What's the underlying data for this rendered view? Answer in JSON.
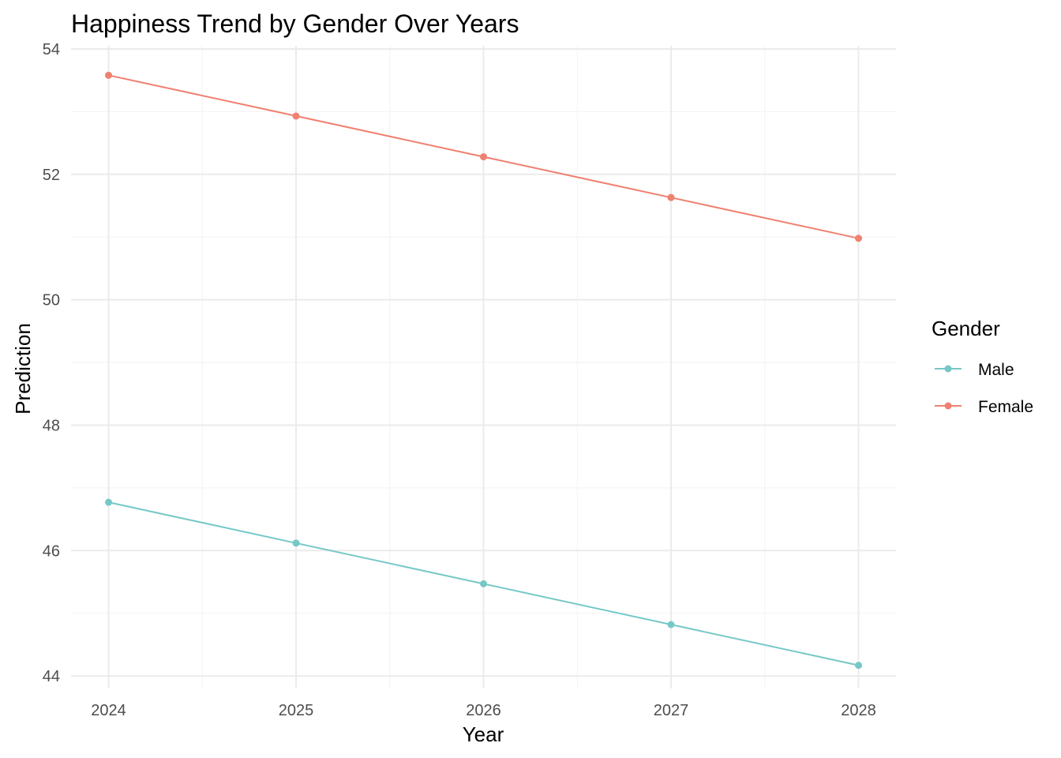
{
  "chart_data": {
    "type": "line",
    "title": "Happiness Trend by Gender Over Years",
    "xlabel": "Year",
    "ylabel": "Prediction",
    "x": [
      2024,
      2025,
      2026,
      2027,
      2028
    ],
    "x_ticks": [
      "2024",
      "2025",
      "2026",
      "2027",
      "2028"
    ],
    "xlim": [
      2023.8,
      2028.2
    ],
    "ylim": [
      43.8,
      54.05
    ],
    "y_ticks": [
      44,
      46,
      48,
      50,
      52,
      54
    ],
    "y_tick_labels": [
      "44",
      "46",
      "48",
      "50",
      "52",
      "54"
    ],
    "grid": true,
    "legend": {
      "title": "Gender",
      "placement": "right"
    },
    "series": [
      {
        "name": "Male",
        "color": "#76c8c8",
        "values": [
          46.77,
          46.12,
          45.47,
          44.82,
          44.17
        ]
      },
      {
        "name": "Female",
        "color": "#f08070",
        "values": [
          53.58,
          52.93,
          52.28,
          51.63,
          50.98
        ]
      }
    ]
  }
}
